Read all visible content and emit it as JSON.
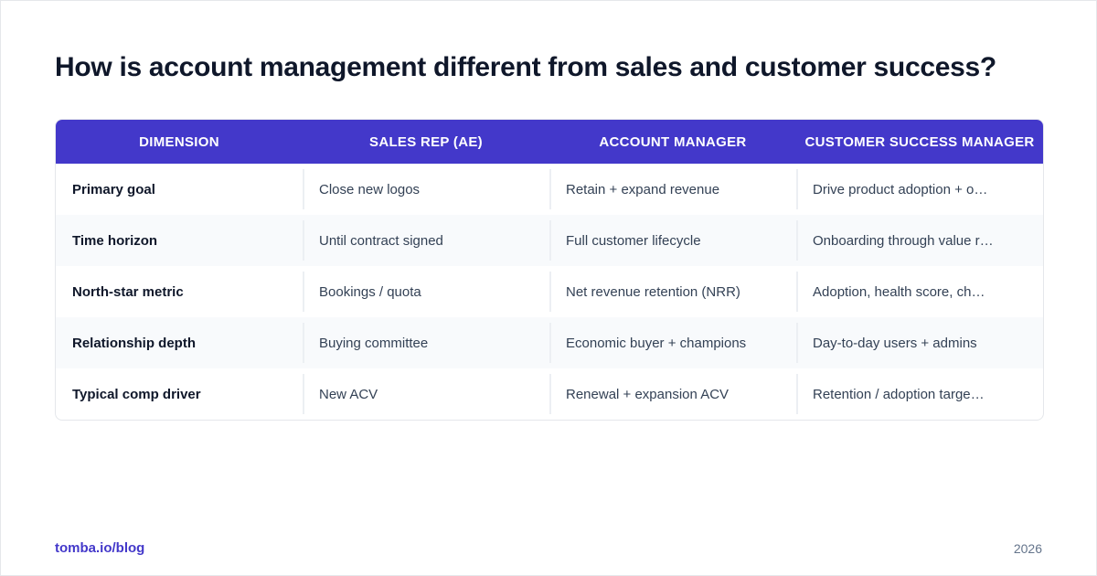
{
  "title": "How is account management different from sales and customer success?",
  "table": {
    "headers": [
      "DIMENSION",
      "SALES REP (AE)",
      "ACCOUNT MANAGER",
      "CUSTOMER SUCCESS MANAGER"
    ],
    "rows": [
      [
        "Primary goal",
        "Close new logos",
        "Retain + expand revenue",
        "Drive product adoption + o…"
      ],
      [
        "Time horizon",
        "Until contract signed",
        "Full customer lifecycle",
        "Onboarding through value r…"
      ],
      [
        "North-star metric",
        "Bookings / quota",
        "Net revenue retention (NRR)",
        "Adoption, health score, ch…"
      ],
      [
        "Relationship depth",
        "Buying committee",
        "Economic buyer + champions",
        "Day-to-day users + admins"
      ],
      [
        "Typical comp driver",
        "New ACV",
        "Renewal + expansion ACV",
        "Retention / adoption targe…"
      ]
    ]
  },
  "footer": {
    "link": "tomba.io/blog",
    "year": "2026"
  },
  "colors": {
    "header_bg": "#4338ca",
    "title": "#0f172a",
    "link": "#4338ca"
  }
}
